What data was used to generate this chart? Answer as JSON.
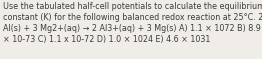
{
  "line1": "Use the tabulated half-cell potentials to calculate the equilibrium",
  "line2": "constant (K) for the following balanced redox reaction at 25°C. 2",
  "line3": "Al(s) + 3 Mg2+(aq) → 2 Al3+(aq) + 3 Mg(s) A) 1.1 × 1072 B) 8.9",
  "line4": "× 10-73 C) 1.1 x 10-72 D) 1.0 × 1024 E) 4.6 × 1031",
  "font_size": 5.8,
  "text_color": "#3d3d3d",
  "bg_color": "#f0ede8"
}
